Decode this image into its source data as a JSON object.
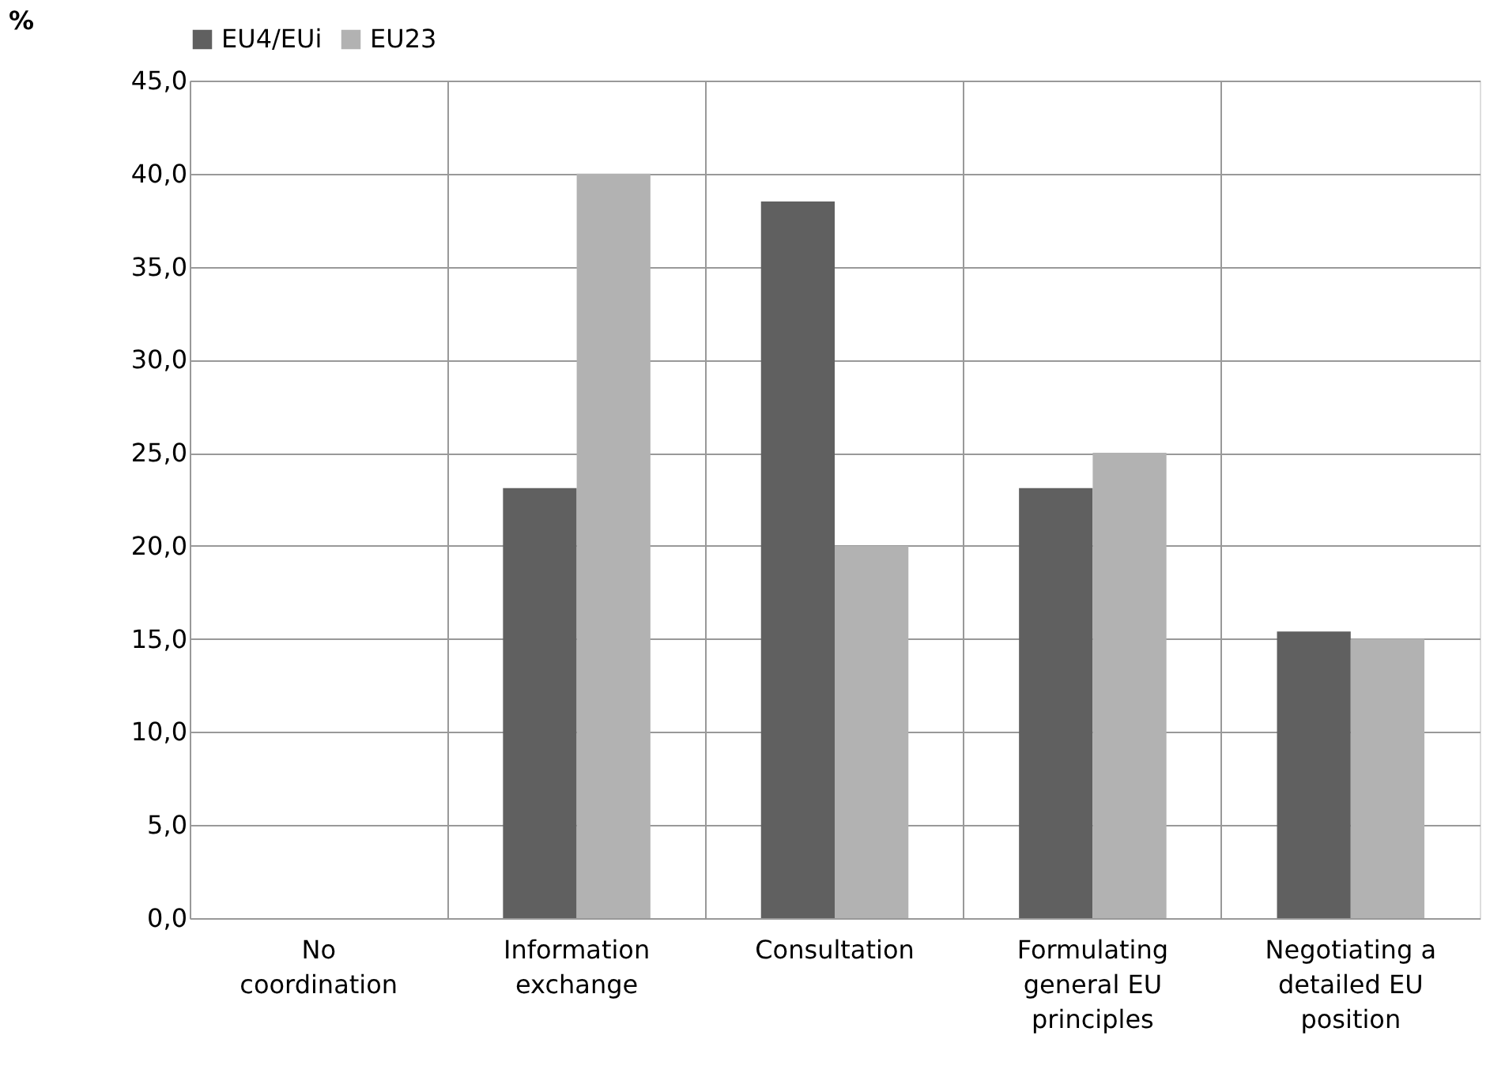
{
  "chart_data": {
    "type": "bar",
    "ylabel": "%",
    "categories": [
      "No coordination",
      "Information exchange",
      "Consultation",
      "Formulating general EU principles",
      "Negotiating a detailed EU position"
    ],
    "series": [
      {
        "name": "EU4/EUi",
        "color": "#606060",
        "values": [
          0,
          23.1,
          38.5,
          23.1,
          15.4
        ]
      },
      {
        "name": "EU23",
        "color": "#b2b2b2",
        "values": [
          0,
          40.0,
          20.0,
          25.0,
          15.0
        ]
      }
    ],
    "ylim": [
      0,
      45
    ],
    "yticks": [
      {
        "value": 0,
        "label": "0,0"
      },
      {
        "value": 5,
        "label": "5,0"
      },
      {
        "value": 10,
        "label": "10,0"
      },
      {
        "value": 15,
        "label": "15,0"
      },
      {
        "value": 20,
        "label": "20,0"
      },
      {
        "value": 25,
        "label": "25,0"
      },
      {
        "value": 30,
        "label": "30,0"
      },
      {
        "value": 35,
        "label": "35,0"
      },
      {
        "value": 40,
        "label": "40,0"
      },
      {
        "value": 45,
        "label": "45,0"
      }
    ],
    "grid": true,
    "legend": "top"
  }
}
